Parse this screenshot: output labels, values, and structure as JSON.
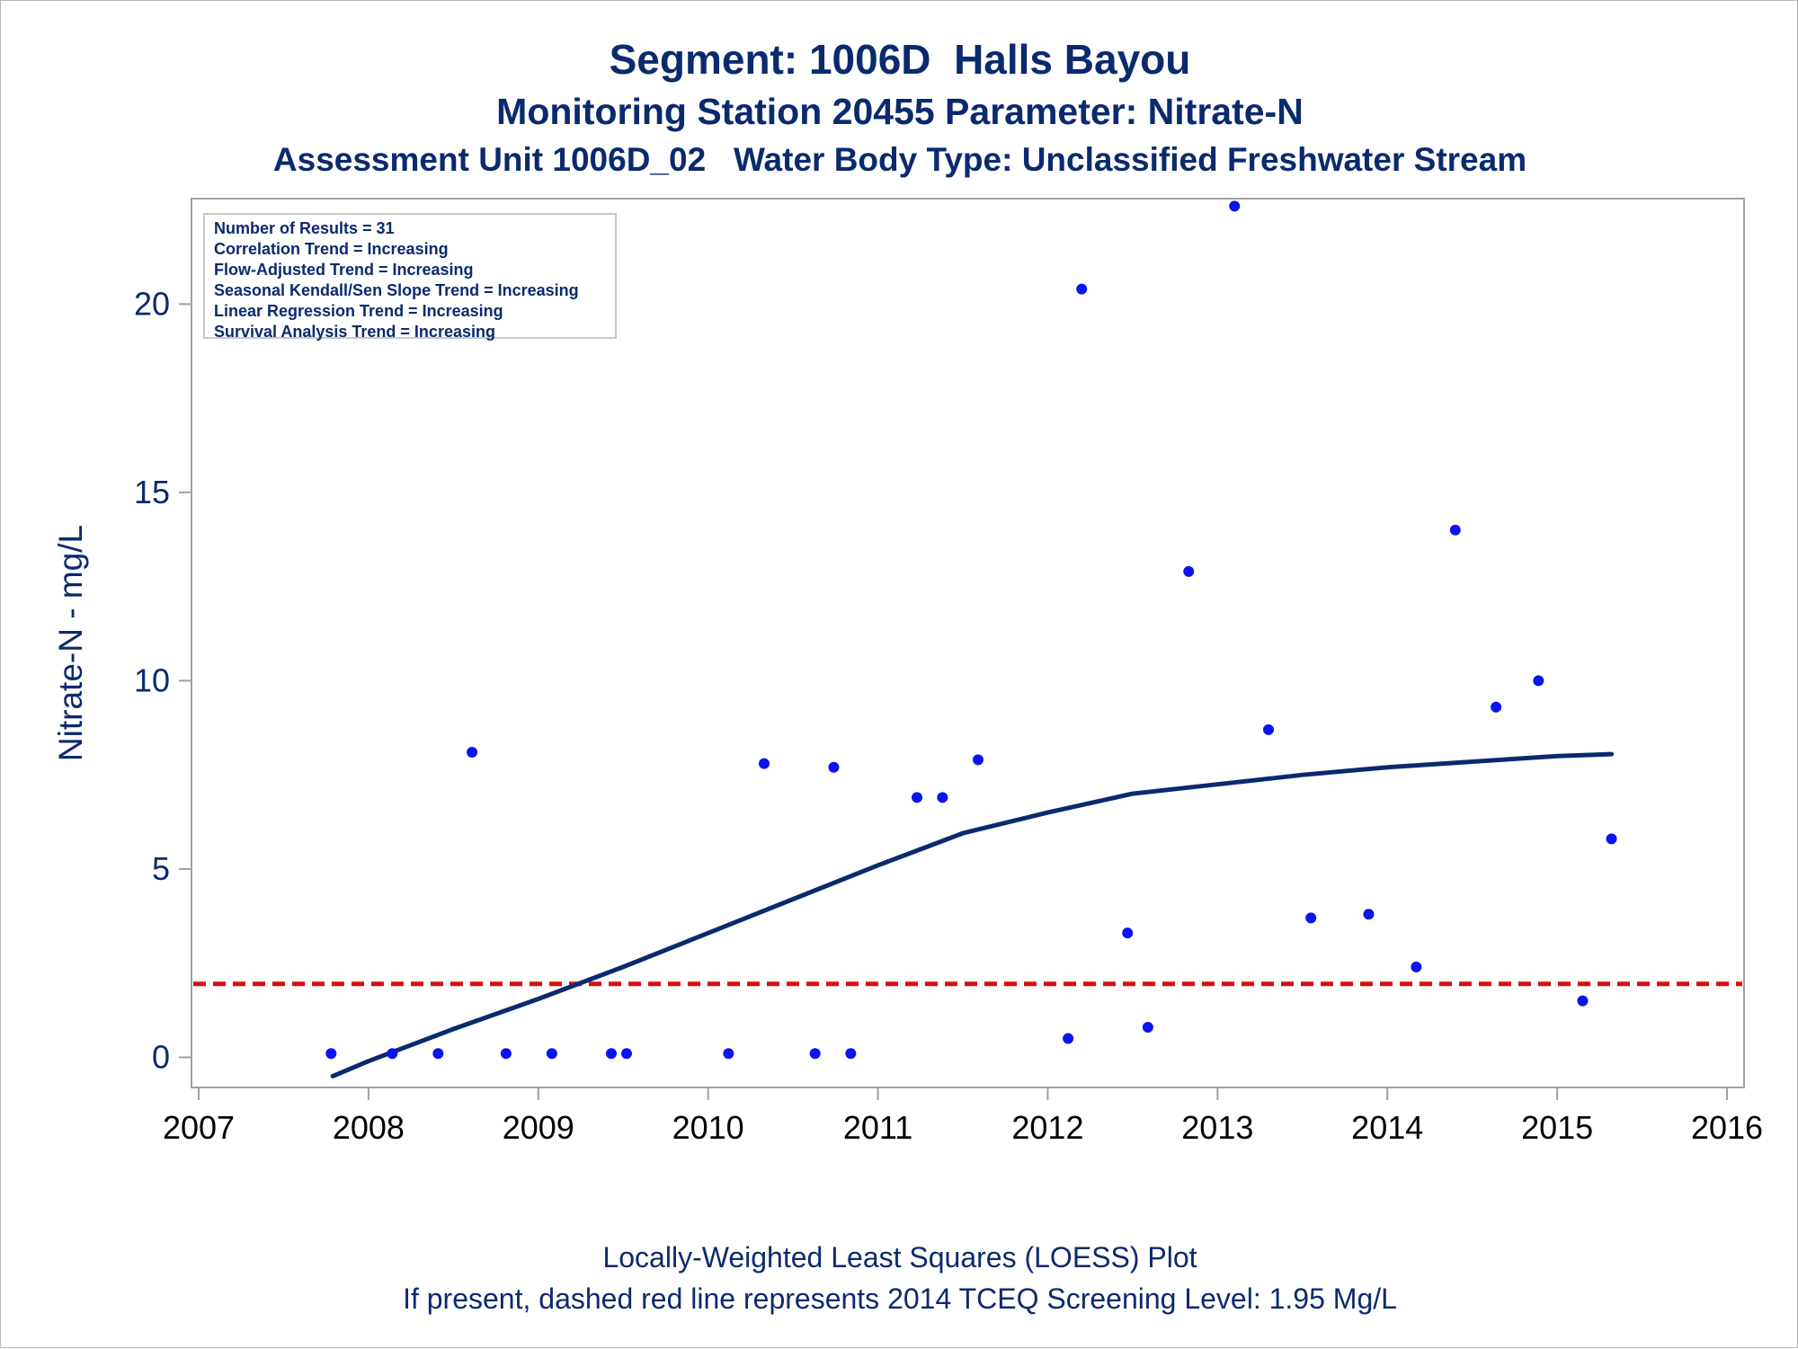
{
  "titles": {
    "line1": "Segment: 1006D  Halls Bayou",
    "line2": "Monitoring Station 20455 Parameter: Nitrate-N",
    "line3": "Assessment Unit 1006D_02   Water Body Type: Unclassified Freshwater Stream"
  },
  "footnotes": {
    "line1": "Locally-Weighted Least Squares (LOESS) Plot",
    "line2": "If present, dashed red line represents 2014 TCEQ Screening Level: 1.95 Mg/L"
  },
  "legend": [
    "Number of Results = 31",
    "Correlation Trend = Increasing",
    "Flow-Adjusted Trend = Increasing",
    "Seasonal Kendall/Sen Slope Trend = Increasing",
    "Linear Regression Trend = Increasing",
    "Survival Analysis Trend = Increasing"
  ],
  "colors": {
    "text": "#0b2a6e",
    "points": "#0a14f0",
    "loess": "#0b2a6e",
    "screening": "#d41010",
    "frame": "#a0a0a0"
  },
  "chart_data": {
    "type": "scatter",
    "ylabel": "Nitrate-N - mg/L",
    "xlim": [
      2007,
      2016
    ],
    "ylim": [
      -0.8,
      22.8
    ],
    "x_ticks": [
      "2007",
      "2008",
      "2009",
      "2010",
      "2011",
      "2012",
      "2013",
      "2014",
      "2015",
      "2016"
    ],
    "y_ticks": [
      "0",
      "5",
      "10",
      "15",
      "20"
    ],
    "points": [
      {
        "x": 2007.78,
        "y": 0.1
      },
      {
        "x": 2008.14,
        "y": 0.1
      },
      {
        "x": 2008.41,
        "y": 0.1
      },
      {
        "x": 2008.61,
        "y": 8.1
      },
      {
        "x": 2008.81,
        "y": 0.1
      },
      {
        "x": 2009.08,
        "y": 0.1
      },
      {
        "x": 2009.43,
        "y": 0.1
      },
      {
        "x": 2009.52,
        "y": 0.1
      },
      {
        "x": 2010.12,
        "y": 0.1
      },
      {
        "x": 2010.33,
        "y": 7.8
      },
      {
        "x": 2010.63,
        "y": 0.1
      },
      {
        "x": 2010.74,
        "y": 7.7
      },
      {
        "x": 2010.84,
        "y": 0.1
      },
      {
        "x": 2011.23,
        "y": 6.9
      },
      {
        "x": 2011.38,
        "y": 6.9
      },
      {
        "x": 2011.59,
        "y": 7.9
      },
      {
        "x": 2012.12,
        "y": 0.5
      },
      {
        "x": 2012.2,
        "y": 20.4
      },
      {
        "x": 2012.47,
        "y": 3.3
      },
      {
        "x": 2012.59,
        "y": 0.8
      },
      {
        "x": 2012.83,
        "y": 12.9
      },
      {
        "x": 2013.1,
        "y": 22.6
      },
      {
        "x": 2013.3,
        "y": 8.7
      },
      {
        "x": 2013.55,
        "y": 3.7
      },
      {
        "x": 2013.89,
        "y": 3.8
      },
      {
        "x": 2014.17,
        "y": 2.4
      },
      {
        "x": 2014.4,
        "y": 14.0
      },
      {
        "x": 2014.64,
        "y": 9.3
      },
      {
        "x": 2014.89,
        "y": 10.0
      },
      {
        "x": 2015.15,
        "y": 1.5
      },
      {
        "x": 2015.32,
        "y": 5.8
      }
    ],
    "loess_curve": [
      {
        "x": 2007.79,
        "y": -0.5
      },
      {
        "x": 2008.0,
        "y": -0.1
      },
      {
        "x": 2008.5,
        "y": 0.75
      },
      {
        "x": 2009.0,
        "y": 1.55
      },
      {
        "x": 2009.5,
        "y": 2.4
      },
      {
        "x": 2010.0,
        "y": 3.3
      },
      {
        "x": 2010.5,
        "y": 4.2
      },
      {
        "x": 2011.0,
        "y": 5.1
      },
      {
        "x": 2011.5,
        "y": 5.95
      },
      {
        "x": 2012.0,
        "y": 6.5
      },
      {
        "x": 2012.5,
        "y": 7.0
      },
      {
        "x": 2013.0,
        "y": 7.25
      },
      {
        "x": 2013.5,
        "y": 7.5
      },
      {
        "x": 2014.0,
        "y": 7.7
      },
      {
        "x": 2014.5,
        "y": 7.85
      },
      {
        "x": 2015.0,
        "y": 8.0
      },
      {
        "x": 2015.32,
        "y": 8.05
      }
    ],
    "screening_level": 1.95
  }
}
